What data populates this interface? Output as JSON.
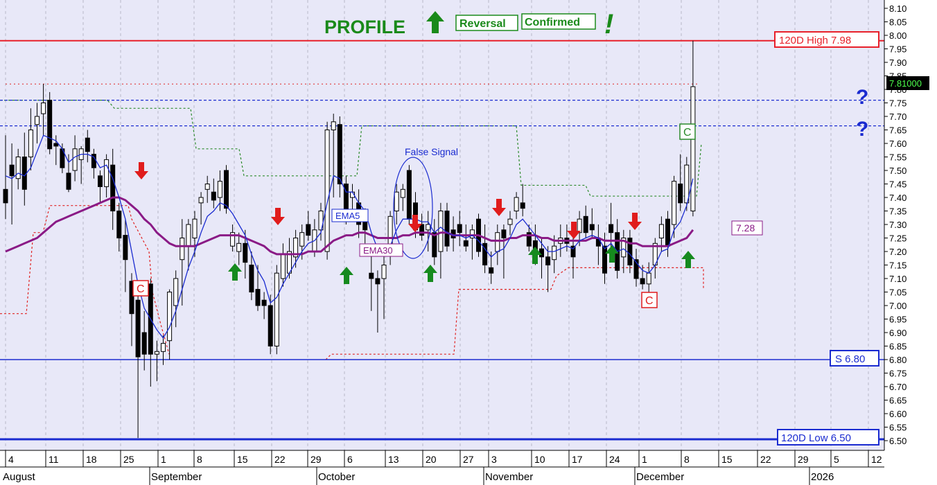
{
  "chart_data": {
    "type": "candlestick",
    "title": {
      "word": "PROFILE",
      "badges": [
        "Reversal",
        "Confirmed"
      ],
      "exclaim": "!"
    },
    "y_axis": {
      "min": 6.45,
      "max": 8.12,
      "ticks": [
        "8.10",
        "8.05",
        "8.00",
        "7.95",
        "7.90",
        "7.85",
        "7.80",
        "7.75",
        "7.70",
        "7.65",
        "7.60",
        "7.55",
        "7.50",
        "7.45",
        "7.40",
        "7.35",
        "7.30",
        "7.25",
        "7.20",
        "7.15",
        "7.10",
        "7.05",
        "7.00",
        "6.95",
        "6.90",
        "6.85",
        "6.80",
        "6.75",
        "6.70",
        "6.65",
        "6.60",
        "6.55",
        "6.50"
      ],
      "last_price_label": "7.81000",
      "last_price": 7.81
    },
    "x_axis": {
      "day_labels": [
        "4",
        "11",
        "18",
        "25",
        "1",
        "8",
        "15",
        "22",
        "29",
        "6",
        "13",
        "20",
        "27",
        "3",
        "10",
        "17",
        "24",
        "1",
        "8",
        "15",
        "22",
        "29",
        "5",
        "12"
      ],
      "months": [
        "August",
        "September",
        "October",
        "November",
        "December",
        "2026"
      ]
    },
    "levels": {
      "high_label": "120D High 7.98",
      "high": 7.98,
      "low_label": "120D Low 6.50",
      "low": 6.505,
      "support_label": "S 6.80",
      "support": 6.8,
      "upper_dashed": 7.76,
      "lower_dashed": 7.665,
      "dotted_high": 7.82
    },
    "annotations": {
      "ema5": "EMA5",
      "ema30": "EMA30",
      "false_signal": "False Signal",
      "value_box": "7.28",
      "c_marker": "C",
      "question": "?"
    },
    "colors": {
      "background": "#e8e8f8",
      "high_line": "#e8202a",
      "support_line": "#1a2bd0",
      "ema5": "#1a2bd0",
      "ema30": "#8a1a86",
      "up_arrow": "#168a1e",
      "down_arrow": "#e01c1c",
      "stop_green": "#2a8a2a",
      "stop_red": "#e02020",
      "title": "#1a8a1a"
    },
    "candles": [
      {
        "o": 7.43,
        "h": 7.63,
        "l": 7.32,
        "c": 7.38
      },
      {
        "o": 7.52,
        "h": 7.6,
        "l": 7.3,
        "c": 7.48
      },
      {
        "o": 7.47,
        "h": 7.58,
        "l": 7.43,
        "c": 7.55
      },
      {
        "o": 7.55,
        "h": 7.64,
        "l": 7.37,
        "c": 7.43
      },
      {
        "o": 7.55,
        "h": 7.73,
        "l": 7.5,
        "c": 7.65
      },
      {
        "o": 7.67,
        "h": 7.75,
        "l": 7.6,
        "c": 7.7
      },
      {
        "o": 7.71,
        "h": 7.82,
        "l": 7.63,
        "c": 7.75
      },
      {
        "o": 7.76,
        "h": 7.79,
        "l": 7.56,
        "c": 7.58
      },
      {
        "o": 7.6,
        "h": 7.63,
        "l": 7.52,
        "c": 7.59
      },
      {
        "o": 7.58,
        "h": 7.6,
        "l": 7.49,
        "c": 7.51
      },
      {
        "o": 7.49,
        "h": 7.56,
        "l": 7.42,
        "c": 7.43
      },
      {
        "o": 7.5,
        "h": 7.63,
        "l": 7.46,
        "c": 7.58
      },
      {
        "o": 7.54,
        "h": 7.59,
        "l": 7.45,
        "c": 7.58
      },
      {
        "o": 7.62,
        "h": 7.65,
        "l": 7.53,
        "c": 7.57
      },
      {
        "o": 7.56,
        "h": 7.58,
        "l": 7.47,
        "c": 7.51
      },
      {
        "o": 7.48,
        "h": 7.5,
        "l": 7.38,
        "c": 7.44
      },
      {
        "o": 7.44,
        "h": 7.56,
        "l": 7.4,
        "c": 7.54
      },
      {
        "o": 7.52,
        "h": 7.58,
        "l": 7.28,
        "c": 7.35
      },
      {
        "o": 7.35,
        "h": 7.38,
        "l": 7.2,
        "c": 7.25
      },
      {
        "o": 7.26,
        "h": 7.32,
        "l": 7.05,
        "c": 7.17
      },
      {
        "o": 7.09,
        "h": 7.12,
        "l": 6.85,
        "c": 6.97
      },
      {
        "o": 7.02,
        "h": 7.06,
        "l": 6.51,
        "c": 6.81
      },
      {
        "o": 6.9,
        "h": 6.98,
        "l": 6.76,
        "c": 6.82
      },
      {
        "o": 7.08,
        "h": 7.1,
        "l": 6.7,
        "c": 6.82
      },
      {
        "o": 6.82,
        "h": 6.87,
        "l": 6.72,
        "c": 6.83
      },
      {
        "o": 6.83,
        "h": 6.89,
        "l": 6.78,
        "c": 6.86
      },
      {
        "o": 6.87,
        "h": 7.06,
        "l": 6.8,
        "c": 7.05
      },
      {
        "o": 7.0,
        "h": 7.13,
        "l": 6.92,
        "c": 7.1
      },
      {
        "o": 7.17,
        "h": 7.32,
        "l": 7.0,
        "c": 7.25
      },
      {
        "o": 7.22,
        "h": 7.32,
        "l": 7.13,
        "c": 7.3
      },
      {
        "o": 7.25,
        "h": 7.35,
        "l": 7.18,
        "c": 7.32
      },
      {
        "o": 7.38,
        "h": 7.42,
        "l": 7.3,
        "c": 7.4
      },
      {
        "o": 7.43,
        "h": 7.48,
        "l": 7.38,
        "c": 7.45
      },
      {
        "o": 7.42,
        "h": 7.47,
        "l": 7.36,
        "c": 7.39
      },
      {
        "o": 7.4,
        "h": 7.5,
        "l": 7.35,
        "c": 7.46
      },
      {
        "o": 7.5,
        "h": 7.52,
        "l": 7.34,
        "c": 7.36
      },
      {
        "o": 7.22,
        "h": 7.3,
        "l": 7.2,
        "c": 7.27
      },
      {
        "o": 7.2,
        "h": 7.27,
        "l": 7.15,
        "c": 7.23
      },
      {
        "o": 7.23,
        "h": 7.28,
        "l": 7.1,
        "c": 7.16
      },
      {
        "o": 7.15,
        "h": 7.2,
        "l": 7.02,
        "c": 7.05
      },
      {
        "o": 7.06,
        "h": 7.15,
        "l": 6.98,
        "c": 7.0
      },
      {
        "o": 7.02,
        "h": 7.05,
        "l": 6.95,
        "c": 7.0
      },
      {
        "o": 7.0,
        "h": 7.04,
        "l": 6.82,
        "c": 6.85
      },
      {
        "o": 6.85,
        "h": 7.15,
        "l": 6.82,
        "c": 7.12
      },
      {
        "o": 7.1,
        "h": 7.23,
        "l": 7.07,
        "c": 7.19
      },
      {
        "o": 7.12,
        "h": 7.25,
        "l": 7.1,
        "c": 7.2
      },
      {
        "o": 7.18,
        "h": 7.28,
        "l": 7.14,
        "c": 7.25
      },
      {
        "o": 7.22,
        "h": 7.3,
        "l": 7.17,
        "c": 7.27
      },
      {
        "o": 7.3,
        "h": 7.35,
        "l": 7.24,
        "c": 7.26
      },
      {
        "o": 7.2,
        "h": 7.32,
        "l": 7.18,
        "c": 7.28
      },
      {
        "o": 7.28,
        "h": 7.38,
        "l": 7.24,
        "c": 7.35
      },
      {
        "o": 7.2,
        "h": 7.68,
        "l": 7.17,
        "c": 7.65
      },
      {
        "o": 7.65,
        "h": 7.71,
        "l": 7.4,
        "c": 7.68
      },
      {
        "o": 7.67,
        "h": 7.7,
        "l": 7.4,
        "c": 7.45
      },
      {
        "o": 7.45,
        "h": 7.48,
        "l": 7.3,
        "c": 7.32
      },
      {
        "o": 7.4,
        "h": 7.45,
        "l": 7.33,
        "c": 7.42
      },
      {
        "o": 7.38,
        "h": 7.43,
        "l": 7.25,
        "c": 7.3
      },
      {
        "o": 7.32,
        "h": 7.36,
        "l": 7.23,
        "c": 7.28
      },
      {
        "o": 7.12,
        "h": 7.2,
        "l": 6.98,
        "c": 7.1
      },
      {
        "o": 7.1,
        "h": 7.13,
        "l": 6.9,
        "c": 7.08
      },
      {
        "o": 7.1,
        "h": 7.2,
        "l": 6.95,
        "c": 7.15
      },
      {
        "o": 7.2,
        "h": 7.35,
        "l": 7.15,
        "c": 7.33
      },
      {
        "o": 7.35,
        "h": 7.45,
        "l": 7.3,
        "c": 7.42
      },
      {
        "o": 7.4,
        "h": 7.45,
        "l": 7.35,
        "c": 7.43
      },
      {
        "o": 7.5,
        "h": 7.52,
        "l": 7.3,
        "c": 7.32
      },
      {
        "o": 7.38,
        "h": 7.42,
        "l": 7.25,
        "c": 7.28
      },
      {
        "o": 7.3,
        "h": 7.34,
        "l": 7.24,
        "c": 7.26
      },
      {
        "o": 7.28,
        "h": 7.35,
        "l": 7.2,
        "c": 7.3
      },
      {
        "o": 7.27,
        "h": 7.32,
        "l": 7.15,
        "c": 7.18
      },
      {
        "o": 7.2,
        "h": 7.38,
        "l": 7.1,
        "c": 7.35
      },
      {
        "o": 7.35,
        "h": 7.38,
        "l": 7.2,
        "c": 7.22
      },
      {
        "o": 7.28,
        "h": 7.33,
        "l": 7.2,
        "c": 7.25
      },
      {
        "o": 7.3,
        "h": 7.35,
        "l": 7.22,
        "c": 7.27
      },
      {
        "o": 7.24,
        "h": 7.3,
        "l": 7.2,
        "c": 7.22
      },
      {
        "o": 7.25,
        "h": 7.3,
        "l": 7.17,
        "c": 7.28
      },
      {
        "o": 7.32,
        "h": 7.34,
        "l": 7.18,
        "c": 7.2
      },
      {
        "o": 7.23,
        "h": 7.3,
        "l": 7.12,
        "c": 7.15
      },
      {
        "o": 7.14,
        "h": 7.2,
        "l": 7.08,
        "c": 7.12
      },
      {
        "o": 7.2,
        "h": 7.3,
        "l": 7.15,
        "c": 7.27
      },
      {
        "o": 7.28,
        "h": 7.3,
        "l": 7.1,
        "c": 7.25
      },
      {
        "o": 7.3,
        "h": 7.35,
        "l": 7.26,
        "c": 7.32
      },
      {
        "o": 7.35,
        "h": 7.42,
        "l": 7.32,
        "c": 7.4
      },
      {
        "o": 7.38,
        "h": 7.45,
        "l": 7.33,
        "c": 7.36
      },
      {
        "o": 7.27,
        "h": 7.3,
        "l": 7.2,
        "c": 7.22
      },
      {
        "o": 7.24,
        "h": 7.3,
        "l": 7.15,
        "c": 7.2
      },
      {
        "o": 7.21,
        "h": 7.25,
        "l": 7.1,
        "c": 7.18
      },
      {
        "o": 7.18,
        "h": 7.22,
        "l": 7.05,
        "c": 7.15
      },
      {
        "o": 7.17,
        "h": 7.26,
        "l": 7.12,
        "c": 7.22
      },
      {
        "o": 7.23,
        "h": 7.3,
        "l": 7.18,
        "c": 7.25
      },
      {
        "o": 7.25,
        "h": 7.3,
        "l": 7.2,
        "c": 7.23
      },
      {
        "o": 7.22,
        "h": 7.26,
        "l": 7.1,
        "c": 7.18
      },
      {
        "o": 7.27,
        "h": 7.35,
        "l": 7.22,
        "c": 7.32
      },
      {
        "o": 7.33,
        "h": 7.37,
        "l": 7.25,
        "c": 7.27
      },
      {
        "o": 7.3,
        "h": 7.36,
        "l": 7.25,
        "c": 7.28
      },
      {
        "o": 7.25,
        "h": 7.3,
        "l": 7.15,
        "c": 7.22
      },
      {
        "o": 7.22,
        "h": 7.27,
        "l": 7.08,
        "c": 7.12
      },
      {
        "o": 7.3,
        "h": 7.38,
        "l": 7.2,
        "c": 7.27
      },
      {
        "o": 7.27,
        "h": 7.32,
        "l": 7.1,
        "c": 7.13
      },
      {
        "o": 7.18,
        "h": 7.28,
        "l": 7.12,
        "c": 7.25
      },
      {
        "o": 7.25,
        "h": 7.28,
        "l": 7.12,
        "c": 7.15
      },
      {
        "o": 7.17,
        "h": 7.21,
        "l": 7.07,
        "c": 7.1
      },
      {
        "o": 7.1,
        "h": 7.15,
        "l": 7.06,
        "c": 7.08
      },
      {
        "o": 7.08,
        "h": 7.16,
        "l": 7.03,
        "c": 7.12
      },
      {
        "o": 7.15,
        "h": 7.25,
        "l": 7.1,
        "c": 7.23
      },
      {
        "o": 7.25,
        "h": 7.33,
        "l": 7.2,
        "c": 7.3
      },
      {
        "o": 7.32,
        "h": 7.35,
        "l": 7.18,
        "c": 7.22
      },
      {
        "o": 7.3,
        "h": 7.48,
        "l": 7.25,
        "c": 7.46
      },
      {
        "o": 7.45,
        "h": 7.56,
        "l": 7.35,
        "c": 7.38
      },
      {
        "o": 7.38,
        "h": 7.55,
        "l": 7.35,
        "c": 7.52
      },
      {
        "o": 7.35,
        "h": 7.98,
        "l": 7.33,
        "c": 7.81
      }
    ],
    "ema5": [
      7.48,
      7.47,
      7.49,
      7.48,
      7.51,
      7.57,
      7.63,
      7.62,
      7.61,
      7.58,
      7.53,
      7.55,
      7.56,
      7.56,
      7.55,
      7.51,
      7.52,
      7.47,
      7.4,
      7.32,
      7.2,
      7.08,
      6.99,
      6.95,
      6.91,
      6.88,
      6.92,
      6.98,
      7.06,
      7.14,
      7.2,
      7.27,
      7.33,
      7.35,
      7.38,
      7.37,
      7.34,
      7.3,
      7.26,
      7.19,
      7.13,
      7.09,
      7.01,
      7.03,
      7.08,
      7.12,
      7.16,
      7.2,
      7.23,
      7.24,
      7.27,
      7.38,
      7.48,
      7.47,
      7.42,
      7.42,
      7.38,
      7.35,
      7.27,
      7.21,
      7.19,
      7.22,
      7.28,
      7.32,
      7.32,
      7.32,
      7.31,
      7.31,
      7.27,
      7.29,
      7.27,
      7.26,
      7.26,
      7.25,
      7.26,
      7.24,
      7.21,
      7.18,
      7.2,
      7.21,
      7.25,
      7.3,
      7.32,
      7.29,
      7.26,
      7.23,
      7.2,
      7.2,
      7.21,
      7.22,
      7.21,
      7.24,
      7.25,
      7.26,
      7.25,
      7.21,
      7.23,
      7.2,
      7.21,
      7.19,
      7.16,
      7.13,
      7.12,
      7.15,
      7.2,
      7.21,
      7.28,
      7.31,
      7.37,
      7.47
    ],
    "ema30": [
      7.2,
      7.21,
      7.22,
      7.23,
      7.24,
      7.25,
      7.27,
      7.29,
      7.31,
      7.32,
      7.33,
      7.34,
      7.35,
      7.36,
      7.37,
      7.38,
      7.39,
      7.4,
      7.4,
      7.39,
      7.37,
      7.35,
      7.32,
      7.3,
      7.27,
      7.25,
      7.23,
      7.22,
      7.22,
      7.22,
      7.22,
      7.23,
      7.24,
      7.25,
      7.26,
      7.26,
      7.26,
      7.26,
      7.25,
      7.24,
      7.23,
      7.22,
      7.2,
      7.19,
      7.19,
      7.19,
      7.19,
      7.19,
      7.2,
      7.2,
      7.2,
      7.22,
      7.24,
      7.25,
      7.26,
      7.26,
      7.27,
      7.27,
      7.26,
      7.25,
      7.25,
      7.25,
      7.25,
      7.26,
      7.26,
      7.27,
      7.27,
      7.27,
      7.26,
      7.27,
      7.27,
      7.26,
      7.26,
      7.26,
      7.26,
      7.26,
      7.25,
      7.24,
      7.24,
      7.24,
      7.25,
      7.25,
      7.26,
      7.26,
      7.26,
      7.25,
      7.25,
      7.24,
      7.24,
      7.24,
      7.24,
      7.24,
      7.24,
      7.25,
      7.25,
      7.24,
      7.24,
      7.24,
      7.24,
      7.23,
      7.23,
      7.22,
      7.22,
      7.22,
      7.22,
      7.22,
      7.23,
      7.24,
      7.25,
      7.28
    ]
  }
}
